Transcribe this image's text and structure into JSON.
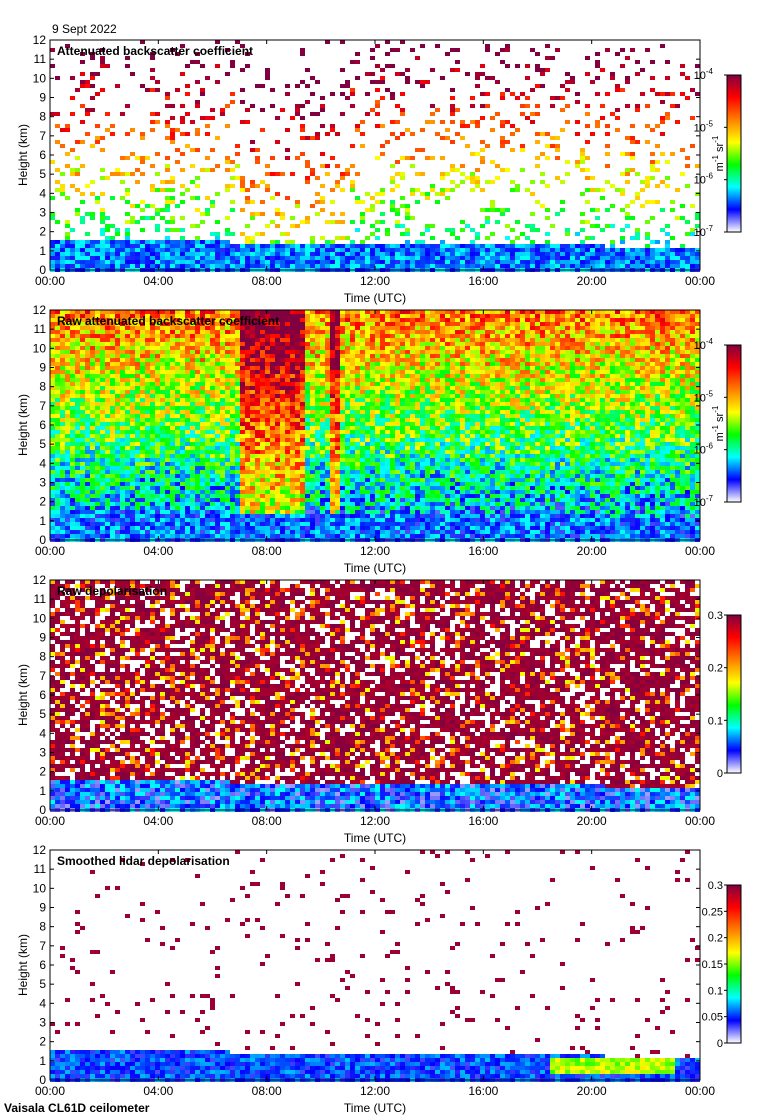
{
  "date": "9 Sept 2022",
  "footer": "Vaisala CL61D ceilometer",
  "chart_data": [
    {
      "type": "heatmap",
      "title": "Attenuated backscatter coefficient",
      "xlabel": "Time (UTC)",
      "ylabel": "Height (km)",
      "x_ticks": [
        "00:00",
        "04:00",
        "08:00",
        "12:00",
        "16:00",
        "20:00",
        "00:00"
      ],
      "ylim": [
        0,
        12
      ],
      "y_ticks": [
        0,
        1,
        2,
        3,
        4,
        5,
        6,
        7,
        8,
        9,
        10,
        11,
        12
      ],
      "colorbar": {
        "scale": "log",
        "range": [
          1e-07,
          0.0001
        ],
        "tick_labels": [
          "10",
          "10",
          "10",
          "10"
        ],
        "tick_exponents": [
          "-7",
          "-6",
          "-5",
          "-4"
        ],
        "tick_values": [
          1e-07,
          1e-06,
          1e-05,
          0.0001
        ],
        "unit_parts": [
          "m",
          "-1",
          " sr",
          "-1"
        ]
      },
      "colormap": [
        "#ffffff",
        "#0000ff",
        "#00ffff",
        "#00ff00",
        "#ffff00",
        "#ff8000",
        "#ff0000",
        "#800040"
      ]
    },
    {
      "type": "heatmap",
      "title": "Raw attenuated backscatter coefficient",
      "xlabel": "Time (UTC)",
      "ylabel": "Height (km)",
      "x_ticks": [
        "00:00",
        "04:00",
        "08:00",
        "12:00",
        "16:00",
        "20:00",
        "00:00"
      ],
      "ylim": [
        0,
        12
      ],
      "y_ticks": [
        0,
        1,
        2,
        3,
        4,
        5,
        6,
        7,
        8,
        9,
        10,
        11,
        12
      ],
      "colorbar": {
        "scale": "log",
        "range": [
          1e-07,
          0.0001
        ],
        "tick_labels": [
          "10",
          "10",
          "10",
          "10"
        ],
        "tick_exponents": [
          "-7",
          "-6",
          "-5",
          "-4"
        ],
        "tick_values": [
          1e-07,
          1e-06,
          1e-05,
          0.0001
        ],
        "unit_parts": [
          "m",
          "-1",
          " sr",
          "-1"
        ]
      },
      "colormap": [
        "#ffffff",
        "#0000ff",
        "#00ffff",
        "#00ff00",
        "#ffff00",
        "#ff8000",
        "#ff0000",
        "#800040"
      ]
    },
    {
      "type": "heatmap",
      "title": "Raw depolarisation",
      "xlabel": "Time (UTC)",
      "ylabel": "Height (km)",
      "x_ticks": [
        "00:00",
        "04:00",
        "08:00",
        "12:00",
        "16:00",
        "20:00",
        "00:00"
      ],
      "ylim": [
        0,
        12
      ],
      "y_ticks": [
        0,
        1,
        2,
        3,
        4,
        5,
        6,
        7,
        8,
        9,
        10,
        11,
        12
      ],
      "colorbar": {
        "scale": "linear",
        "range": [
          0,
          0.3
        ],
        "tick_labels": [
          "0",
          "0.1",
          "0.2",
          "0.3"
        ],
        "tick_exponents": [
          "",
          "",
          "",
          ""
        ],
        "tick_values": [
          0,
          0.1,
          0.2,
          0.3
        ],
        "unit_parts": []
      },
      "colormap": [
        "#ffffff",
        "#0000ff",
        "#00ffff",
        "#00ff00",
        "#ffff00",
        "#ff8000",
        "#ff0000",
        "#800040"
      ]
    },
    {
      "type": "heatmap",
      "title": "Smoothed lidar depolarisation",
      "xlabel": "Time (UTC)",
      "ylabel": "Height (km)",
      "x_ticks": [
        "00:00",
        "04:00",
        "08:00",
        "12:00",
        "16:00",
        "20:00",
        "00:00"
      ],
      "ylim": [
        0,
        12
      ],
      "y_ticks": [
        0,
        1,
        2,
        3,
        4,
        5,
        6,
        7,
        8,
        9,
        10,
        11,
        12
      ],
      "colorbar": {
        "scale": "linear",
        "range": [
          0,
          0.3
        ],
        "tick_labels": [
          "0",
          "0.05",
          "0.1",
          "0.15",
          "0.2",
          "0.25",
          "0.3"
        ],
        "tick_exponents": [
          "",
          "",
          "",
          "",
          "",
          "",
          ""
        ],
        "tick_values": [
          0,
          0.05,
          0.1,
          0.15,
          0.2,
          0.25,
          0.3
        ],
        "unit_parts": []
      },
      "colormap": [
        "#ffffff",
        "#0000ff",
        "#00ffff",
        "#00ff00",
        "#ffff00",
        "#ff8000",
        "#ff0000",
        "#800040"
      ]
    }
  ]
}
